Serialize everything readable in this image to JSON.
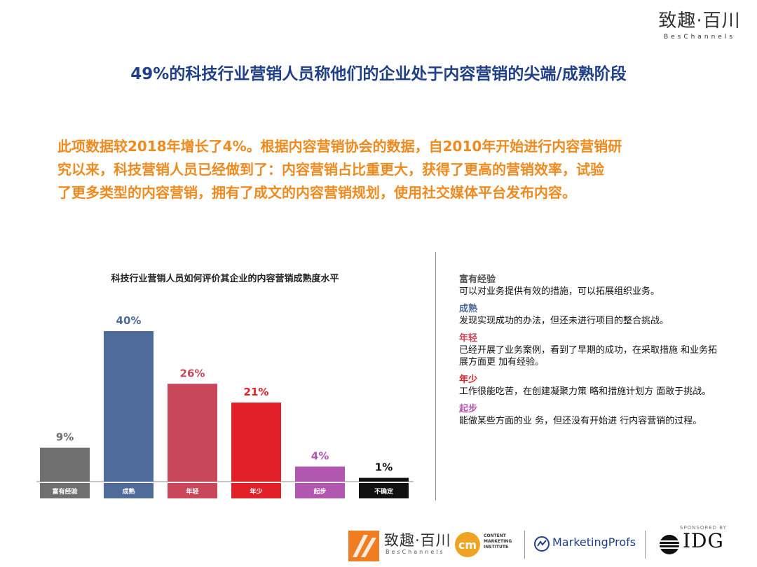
{
  "brand": {
    "cn": "致趣·百川",
    "en": "BesChannels"
  },
  "title": "49%的科技行业营销人员称他们的企业处于内容营销的尖端/成熟阶段",
  "intro": [
    "此项数据较2018年增长了4%。根据内容营销协会的数据，自2010年开始进行内容营销研",
    "究以来，科技营销人员已经做到了：内容营销占比重更大，获得了更高的营销效率，试验",
    "了更多类型的内容营销，拥有了成文的内容营销规划，使用社交媒体平台发布内容。"
  ],
  "chart_data": {
    "type": "bar",
    "title": "科技行业营销人员如何评价其企业的内容营销成熟度水平",
    "categories": [
      "富有经验",
      "成熟",
      "年轻",
      "年少",
      "起步",
      "不确定"
    ],
    "values": [
      9,
      40,
      26,
      21,
      4,
      1
    ],
    "value_labels": [
      "9%",
      "40%",
      "26%",
      "21%",
      "4%",
      "1%"
    ],
    "colors": [
      "#6f6f6f",
      "#4e6b9a",
      "#c8475a",
      "#e22028",
      "#b157b0",
      "#111111"
    ],
    "label_colors": [
      "#6f6f6f",
      "#4e6b9a",
      "#c8475a",
      "#e22028",
      "#b157b0",
      "#111111"
    ],
    "ylim": [
      0,
      40
    ],
    "grid": false,
    "legend": "right"
  },
  "legend": [
    {
      "name": "富有经验",
      "color": "#555555",
      "desc": "可以对业务提供有效的措施，可以拓展组织业务。"
    },
    {
      "name": "成熟",
      "color": "#4e6b9a",
      "desc": "发现实现成功的办法，但还未进行项目的整合挑战。"
    },
    {
      "name": "年轻",
      "color": "#c8475a",
      "desc": "已经开展了业务案例，看到了早期的成功，在采取措施 和业务拓展方面更 加有经验。"
    },
    {
      "name": "年少",
      "color": "#e22028",
      "desc": "工作很能吃苦，在创建凝聚力策 略和措施计划方 面敢于挑战。"
    },
    {
      "name": "起步",
      "color": "#b157b0",
      "desc": "能做某些方面的业 务，但还没有开始进 行内容营销的过程。"
    }
  ],
  "footer": {
    "brand_cn": "致趣·百川",
    "brand_en": "BesChannels",
    "cmi_mark": "cm",
    "cmi_lines": [
      "CONTENT",
      "MARKETING",
      "INSTITUTE"
    ],
    "marketingprofs": "MarketingProfs",
    "sponsored": "SPONSORED BY",
    "idg": "IDG"
  }
}
